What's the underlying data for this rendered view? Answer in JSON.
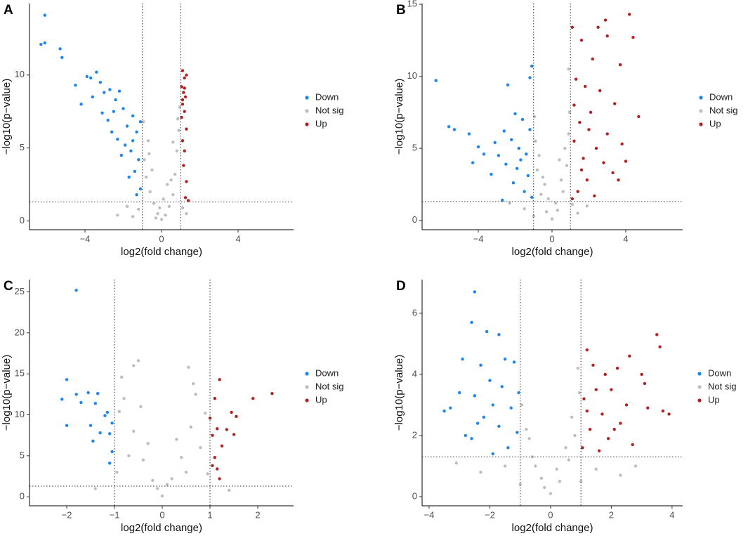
{
  "chart_data": [
    {
      "type": "scatter",
      "label": "A",
      "xlabel": "log2(fold change)",
      "ylabel": "−log10(p−value)",
      "xlim": [
        -6.9,
        6.9
      ],
      "ylim": [
        -0.6,
        14.9
      ],
      "xticks": [
        {
          "value": -4,
          "label": "−4"
        },
        0,
        4
      ],
      "yticks": [
        0,
        5,
        10
      ],
      "vlines": [
        -1,
        1
      ],
      "hline": 1.3,
      "series": [
        {
          "name": "Down",
          "color": "#1c86ee",
          "x": [
            -6.1,
            -6.3,
            -6.1,
            -5.3,
            -5.2,
            -4.5,
            -3.9,
            -3.7,
            -3.4,
            -3.2,
            -4.2,
            -3.6,
            -3.0,
            -2.7,
            -2.4,
            -2.2,
            -3.1,
            -2.8,
            -2.5,
            -2.0,
            -1.8,
            -1.5,
            -1.3,
            -2.3,
            -1.9,
            -1.6,
            -1.2,
            -2.6,
            -1.4,
            -1.1,
            -1.7,
            -1.3,
            -2.1,
            -1.5,
            -1.1
          ],
          "y": [
            14.1,
            12.1,
            12.2,
            11.8,
            11.2,
            9.3,
            9.9,
            9.8,
            10.2,
            9.5,
            8.0,
            8.5,
            8.8,
            9.0,
            8.3,
            8.9,
            7.4,
            6.9,
            7.5,
            7.7,
            6.5,
            7.2,
            6.1,
            5.6,
            5.2,
            4.8,
            4.2,
            6.1,
            3.4,
            2.2,
            3.0,
            1.8,
            4.5,
            5.5,
            6.8
          ]
        },
        {
          "name": "Not sig",
          "color": "#bebebe",
          "x": [
            0,
            -0.2,
            0.2,
            -0.4,
            0.4,
            -0.6,
            0.6,
            -0.8,
            0.7,
            -0.9,
            0.8,
            -0.7,
            0.9,
            0.85,
            -0.95,
            0.95,
            -1.2,
            1.3,
            -1.8,
            -2.3,
            1.1,
            -0.3,
            0.3,
            -0.5,
            0.5,
            -0.1,
            0.1,
            -0.65,
            0.6,
            -1.5
          ],
          "y": [
            0.1,
            0.5,
            0.4,
            1.2,
            1.0,
            2.0,
            1.8,
            3.0,
            3.2,
            4.2,
            4.8,
            5.5,
            6.2,
            7.0,
            6.8,
            7.8,
            0.8,
            0.5,
            1.0,
            0.4,
            0.9,
            0.2,
            2.5,
            3.5,
            2.8,
            0.9,
            1.5,
            4.6,
            5.4,
            0.3
          ]
        },
        {
          "name": "Up",
          "color": "#b22222",
          "x": [
            1.1,
            1.2,
            1.05,
            1.15,
            1.25,
            1.1,
            1.2,
            1.05,
            1.3,
            1.1,
            1.2,
            1.15,
            1.3,
            1.25,
            1.4,
            1.1,
            1.2,
            1.3
          ],
          "y": [
            10.3,
            9.8,
            9.2,
            8.8,
            8.5,
            8.0,
            7.5,
            7.1,
            6.3,
            5.5,
            4.8,
            3.8,
            2.7,
            1.6,
            1.4,
            8.3,
            9.1,
            10.0
          ]
        }
      ]
    },
    {
      "type": "scatter",
      "label": "B",
      "xlabel": "log2(fold change)",
      "ylabel": "−log10(p−value)",
      "xlim": [
        -7.05,
        7.09
      ],
      "ylim": [
        -0.65,
        15.05
      ],
      "xticks": [
        {
          "value": -4,
          "label": "−4"
        },
        0,
        4
      ],
      "yticks": [
        0,
        5,
        10,
        15
      ],
      "vlines": [
        -1,
        1
      ],
      "hline": 1.3,
      "series": [
        {
          "name": "Down",
          "color": "#1c86ee",
          "x": [
            -6.3,
            -5.6,
            -5.3,
            -4.5,
            -4.0,
            -3.7,
            -4.3,
            -3.3,
            -2.4,
            -1.1,
            -1.2,
            -2.0,
            -1.6,
            -2.6,
            -2.2,
            -1.8,
            -1.4,
            -2.9,
            -2.5,
            -1.9,
            -1.3,
            -2.1,
            -1.5,
            -1.1,
            -2.7,
            -1.7,
            -1.2,
            -3.1
          ],
          "y": [
            9.7,
            6.5,
            6.3,
            6.0,
            5.1,
            4.6,
            4.0,
            3.2,
            9.4,
            10.7,
            9.9,
            7.4,
            7.0,
            6.2,
            5.6,
            5.0,
            4.6,
            4.5,
            3.9,
            3.6,
            3.1,
            2.6,
            2.0,
            1.6,
            1.4,
            4.2,
            6.3,
            5.4
          ]
        },
        {
          "name": "Not sig",
          "color": "#bebebe",
          "x": [
            0,
            -0.3,
            0.3,
            -0.6,
            0.6,
            -0.8,
            0.8,
            -0.9,
            0.9,
            -0.95,
            0.95,
            0.9,
            -0.5,
            0.5,
            -0.7,
            0.7,
            -1.5,
            1.4,
            -2.3,
            1.9,
            -0.2,
            0.2,
            0.4,
            -0.4,
            -1.0,
            1.1
          ],
          "y": [
            0.1,
            0.6,
            0.7,
            1.8,
            2.0,
            3.5,
            3.8,
            5.5,
            6.0,
            7.2,
            7.5,
            10.5,
            3.0,
            2.8,
            4.5,
            5.0,
            0.8,
            0.5,
            1.2,
            1.0,
            1.5,
            1.2,
            4.2,
            2.5,
            0.3,
            1.1
          ]
        },
        {
          "name": "Up",
          "color": "#b22222",
          "x": [
            4.2,
            4.4,
            2.9,
            2.5,
            3.0,
            3.7,
            1.1,
            1.6,
            2.2,
            1.3,
            1.8,
            2.6,
            4.7,
            3.4,
            2.1,
            1.5,
            3.0,
            3.8,
            2.4,
            1.2,
            1.7,
            2.8,
            4.0,
            3.3,
            1.9,
            1.4,
            2.3,
            1.1,
            1.6,
            2.0,
            3.6,
            1.2
          ],
          "y": [
            14.3,
            12.7,
            13.9,
            13.4,
            12.8,
            10.8,
            13.4,
            12.5,
            11.2,
            9.8,
            9.3,
            9.0,
            7.2,
            8.1,
            7.5,
            6.8,
            6.0,
            5.3,
            5.0,
            5.5,
            4.3,
            4.0,
            4.1,
            3.3,
            2.8,
            2.0,
            1.7,
            1.5,
            3.5,
            6.3,
            2.8,
            8.0
          ]
        }
      ]
    },
    {
      "type": "scatter",
      "label": "C",
      "xlabel": "log2(fold change)",
      "ylabel": "−log10(p−value)",
      "xlim": [
        -2.78,
        2.75
      ],
      "ylim": [
        -1.1,
        26.5
      ],
      "xticks": [
        {
          "value": -2,
          "label": "−2"
        },
        {
          "value": -1,
          "label": "−1"
        },
        0,
        1,
        2
      ],
      "yticks": [
        0,
        5,
        10,
        15,
        20,
        25
      ],
      "vlines": [
        -1,
        1
      ],
      "hline": 1.3,
      "series": [
        {
          "name": "Down",
          "color": "#1c86ee",
          "x": [
            -1.8,
            -2.0,
            -2.1,
            -1.8,
            -1.55,
            -1.35,
            -1.7,
            -1.4,
            -2.0,
            -1.5,
            -1.2,
            -1.3,
            -1.45,
            -1.05,
            -1.1,
            -1.05,
            -1.1,
            -1.15
          ],
          "y": [
            25.2,
            14.3,
            11.9,
            12.5,
            12.7,
            12.6,
            11.5,
            11.4,
            8.7,
            8.7,
            9.9,
            7.8,
            6.8,
            9.0,
            7.7,
            5.5,
            4.1,
            10.3
          ]
        },
        {
          "name": "Not sig",
          "color": "#bebebe",
          "x": [
            0,
            -0.2,
            0.2,
            -0.4,
            0.4,
            -0.6,
            0.6,
            -0.8,
            0.7,
            -0.5,
            -0.6,
            0.55,
            -0.9,
            0.9,
            -0.3,
            0.3,
            -0.1,
            0.1,
            -0.7,
            0.8,
            -0.95,
            0.95,
            -1.4,
            1.4,
            0.5,
            -0.45,
            0.65,
            -0.85
          ],
          "y": [
            0.1,
            2,
            2.2,
            4.5,
            4.8,
            8,
            8.5,
            12,
            12.5,
            16.6,
            16.0,
            15.8,
            10.4,
            10.2,
            6.5,
            7.0,
            1,
            1.5,
            5.0,
            6.0,
            3.0,
            2.8,
            1.0,
            0.8,
            3,
            11,
            13.8,
            14.6
          ]
        },
        {
          "name": "Up",
          "color": "#b22222",
          "x": [
            2.3,
            1.9,
            1.55,
            1.45,
            1.2,
            1.1,
            1.15,
            1.35,
            1.5,
            1.25,
            1.0,
            1.05,
            1.1,
            1.15,
            1.2,
            1.05
          ],
          "y": [
            12.6,
            12.0,
            9.8,
            10.3,
            14.3,
            12.0,
            8.3,
            8.2,
            7.6,
            6.2,
            9.6,
            7.5,
            4.8,
            3.4,
            2.2,
            3.8
          ]
        }
      ]
    },
    {
      "type": "scatter",
      "label": "D",
      "xlabel": "log2(fold change)",
      "ylabel": "−log10(p−value)",
      "xlim": [
        -4.23,
        4.35
      ],
      "ylim": [
        -0.3,
        7.1
      ],
      "xticks": [
        {
          "value": -4,
          "label": "−4"
        },
        {
          "value": -2,
          "label": "−2"
        },
        0,
        2,
        4
      ],
      "yticks": [
        0,
        2,
        4,
        6
      ],
      "vlines": [
        -1,
        1
      ],
      "hline": 1.3,
      "series": [
        {
          "name": "Down",
          "color": "#1c86ee",
          "x": [
            -2.5,
            -2.6,
            -2.1,
            -1.7,
            -2.9,
            -3.3,
            -3.5,
            -2.8,
            -2.3,
            -1.5,
            -1.2,
            -2.0,
            -1.6,
            -2.5,
            -1.9,
            -1.3,
            -2.2,
            -1.7,
            -1.1,
            -2.6,
            -1.4,
            -1.9,
            -1.05,
            -3.0,
            -2.4
          ],
          "y": [
            6.7,
            5.7,
            5.4,
            5.3,
            4.5,
            2.9,
            2.8,
            2.0,
            4.3,
            4.5,
            4.4,
            3.8,
            3.6,
            3.3,
            3.0,
            2.9,
            2.6,
            2.3,
            2.1,
            1.9,
            1.6,
            1.4,
            3.4,
            3.4,
            2.4
          ]
        },
        {
          "name": "Not sig",
          "color": "#bebebe",
          "x": [
            0,
            -0.3,
            0.3,
            -0.6,
            0.6,
            -0.8,
            0.8,
            -0.95,
            0.95,
            0.9,
            -1.5,
            1.5,
            -2.3,
            2.3,
            -0.5,
            0.5,
            -0.2,
            0.2,
            -1.0,
            1.0,
            -3.1,
            2.8,
            0.7,
            -0.7
          ],
          "y": [
            0.1,
            0.6,
            0.5,
            1.3,
            1.2,
            2.2,
            2.0,
            3.0,
            3.4,
            4.2,
            1.0,
            0.9,
            0.8,
            0.7,
            1.0,
            1.6,
            0.3,
            0.9,
            0.4,
            0.5,
            1.1,
            1.0,
            2.6,
            1.9
          ]
        },
        {
          "name": "Up",
          "color": "#b22222",
          "x": [
            3.5,
            3.6,
            2.6,
            1.2,
            1.4,
            2.2,
            3.0,
            1.8,
            3.1,
            2.0,
            1.5,
            3.2,
            3.7,
            3.9,
            2.5,
            1.1,
            1.7,
            2.3,
            1.3,
            1.9,
            1.05,
            2.7,
            1.6,
            1.2,
            2.1
          ],
          "y": [
            5.3,
            4.9,
            4.6,
            4.8,
            4.3,
            4.2,
            4.0,
            4.0,
            3.7,
            3.5,
            3.5,
            2.9,
            2.8,
            2.7,
            3.0,
            3.2,
            2.7,
            2.4,
            2.2,
            1.9,
            1.6,
            1.7,
            1.5,
            2.8,
            2.2
          ]
        }
      ]
    }
  ]
}
